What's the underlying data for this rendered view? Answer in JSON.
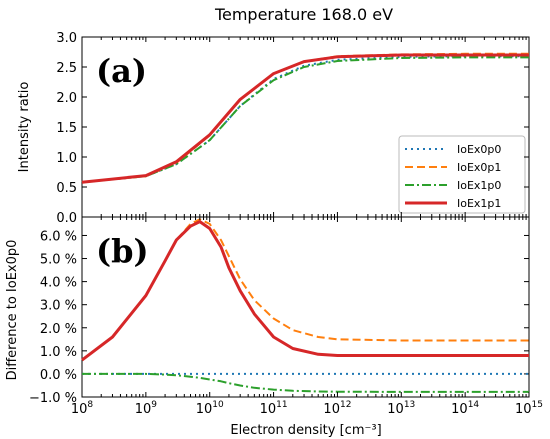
{
  "chart_data": {
    "type": "line",
    "title": "Temperature 168.0 eV",
    "xlabel": "Electron density [cm⁻³]",
    "x_scale": "log",
    "xlim": [
      100000000.0,
      1000000000000000.0
    ],
    "x_ticks": [
      {
        "base": "10",
        "exp": "8"
      },
      {
        "base": "10",
        "exp": "9"
      },
      {
        "base": "10",
        "exp": "10"
      },
      {
        "base": "10",
        "exp": "11"
      },
      {
        "base": "10",
        "exp": "12"
      },
      {
        "base": "10",
        "exp": "13"
      },
      {
        "base": "10",
        "exp": "14"
      },
      {
        "base": "10",
        "exp": "15"
      }
    ],
    "grid": false,
    "legend_location": "lower-right of panel (a)",
    "panels": [
      {
        "label": "(a)",
        "ylabel": "Intensity ratio",
        "ylim": [
          0.0,
          3.0
        ],
        "y_ticks": [
          "0.0",
          "0.5",
          "1.0",
          "1.5",
          "2.0",
          "2.5",
          "3.0"
        ],
        "y_tick_values": [
          0.0,
          0.5,
          1.0,
          1.5,
          2.0,
          2.5,
          3.0
        ],
        "x": [
          100000000.0,
          1000000000.0,
          3000000000.0,
          10000000000.0,
          30000000000.0,
          100000000000.0,
          300000000000.0,
          1000000000000.0,
          10000000000000.0,
          100000000000000.0,
          1000000000000000.0
        ],
        "series": [
          {
            "name": "IoEx0p0",
            "color": "#1f77b4",
            "dash": "dotted",
            "values": [
              0.58,
              0.68,
              0.88,
              1.28,
              1.85,
              2.3,
              2.52,
              2.62,
              2.67,
              2.68,
              2.68
            ]
          },
          {
            "name": "IoEx0p1",
            "color": "#ff7f0e",
            "dash": "dashed",
            "values": [
              0.58,
              0.68,
              0.9,
              1.36,
              1.95,
              2.39,
              2.59,
              2.68,
              2.71,
              2.72,
              2.72
            ]
          },
          {
            "name": "IoEx1p0",
            "color": "#2ca02c",
            "dash": "dashdot",
            "values": [
              0.58,
              0.68,
              0.88,
              1.28,
              1.85,
              2.28,
              2.5,
              2.6,
              2.65,
              2.66,
              2.66
            ]
          },
          {
            "name": "IoEx1p1",
            "color": "#d62728",
            "dash": "solid",
            "values": [
              0.58,
              0.69,
              0.92,
              1.37,
              1.96,
              2.39,
              2.59,
              2.67,
              2.7,
              2.7,
              2.7
            ]
          }
        ]
      },
      {
        "label": "(b)",
        "ylabel": "Difference to IoEx0p0",
        "ylim": [
          -1.0,
          6.8
        ],
        "y_ticks": [
          "−1.0 %",
          "0.0 %",
          "1.0 %",
          "2.0 %",
          "3.0 %",
          "4.0 %",
          "5.0 %",
          "6.0 %"
        ],
        "y_tick_values": [
          -1.0,
          0.0,
          1.0,
          2.0,
          3.0,
          4.0,
          5.0,
          6.0
        ],
        "x": [
          100000000.0,
          300000000.0,
          1000000000.0,
          2000000000.0,
          3000000000.0,
          5000000000.0,
          7000000000.0,
          10000000000.0,
          15000000000.0,
          20000000000.0,
          30000000000.0,
          50000000000.0,
          100000000000.0,
          200000000000.0,
          500000000000.0,
          1000000000000.0,
          10000000000000.0,
          100000000000000.0,
          1000000000000000.0
        ],
        "series": [
          {
            "name": "IoEx0p0",
            "color": "#1f77b4",
            "dash": "dotted",
            "values": [
              0.0,
              0.0,
              0.0,
              0.0,
              0.0,
              0.0,
              0.0,
              0.0,
              0.0,
              0.0,
              0.0,
              0.0,
              0.0,
              0.0,
              0.0,
              0.0,
              0.0,
              0.0,
              0.0
            ]
          },
          {
            "name": "IoEx0p1",
            "color": "#ff7f0e",
            "dash": "dashed",
            "values": [
              0.6,
              1.6,
              3.4,
              4.9,
              5.8,
              6.5,
              6.7,
              6.5,
              5.8,
              5.1,
              4.1,
              3.2,
              2.4,
              1.9,
              1.6,
              1.5,
              1.45,
              1.45,
              1.45
            ]
          },
          {
            "name": "IoEx1p0",
            "color": "#2ca02c",
            "dash": "dashdot",
            "values": [
              0.0,
              0.0,
              0.0,
              -0.03,
              -0.06,
              -0.12,
              -0.17,
              -0.24,
              -0.32,
              -0.4,
              -0.5,
              -0.6,
              -0.68,
              -0.73,
              -0.76,
              -0.77,
              -0.78,
              -0.78,
              -0.78
            ]
          },
          {
            "name": "IoEx1p1",
            "color": "#d62728",
            "dash": "solid",
            "values": [
              0.6,
              1.6,
              3.4,
              4.9,
              5.8,
              6.4,
              6.6,
              6.3,
              5.5,
              4.6,
              3.6,
              2.6,
              1.6,
              1.1,
              0.85,
              0.8,
              0.8,
              0.8,
              0.8
            ]
          }
        ]
      }
    ]
  }
}
